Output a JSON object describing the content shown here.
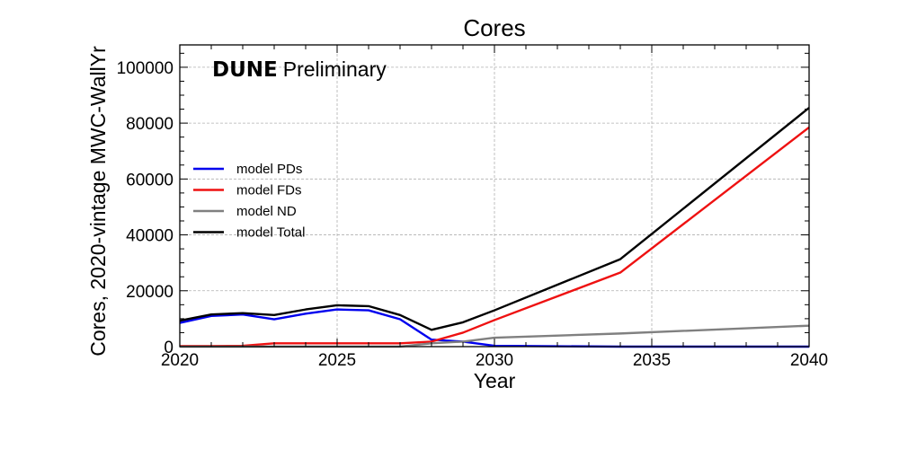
{
  "chart_data": {
    "type": "line",
    "title": "Cores",
    "xlabel": "Year",
    "ylabel": "Cores, 2020-vintage MWC-WallYr",
    "xlim": [
      2020,
      2040
    ],
    "ylim": [
      0,
      108000
    ],
    "xticks": [
      2020,
      2025,
      2030,
      2035,
      2040
    ],
    "yticks": [
      0,
      20000,
      40000,
      60000,
      80000,
      100000
    ],
    "grid": true,
    "legend_position": "center-left",
    "annotation": {
      "bold": "DUNE",
      "regular": "Preliminary"
    },
    "series": [
      {
        "name": "model PDs",
        "color": "#0000ee",
        "x": [
          2020,
          2021,
          2022,
          2023,
          2024,
          2025,
          2026,
          2027,
          2028,
          2029,
          2030,
          2034,
          2040
        ],
        "y": [
          8500,
          11000,
          11500,
          9800,
          11800,
          13300,
          13000,
          9800,
          2500,
          1800,
          300,
          0,
          0
        ]
      },
      {
        "name": "model FDs",
        "color": "#ee1111",
        "x": [
          2020,
          2021,
          2022,
          2023,
          2024,
          2025,
          2026,
          2027,
          2028,
          2029,
          2030,
          2034,
          2040
        ],
        "y": [
          200,
          200,
          300,
          1200,
          1200,
          1200,
          1200,
          1200,
          1800,
          5000,
          9500,
          26500,
          78500
        ]
      },
      {
        "name": "model ND",
        "color": "#808080",
        "x": [
          2020,
          2021,
          2022,
          2023,
          2024,
          2025,
          2026,
          2027,
          2028,
          2029,
          2030,
          2034,
          2040
        ],
        "y": [
          0,
          0,
          0,
          0,
          0,
          0,
          0,
          0,
          1200,
          1800,
          3200,
          4700,
          7500
        ]
      },
      {
        "name": "model Total",
        "color": "#000000",
        "x": [
          2020,
          2021,
          2022,
          2023,
          2024,
          2025,
          2026,
          2027,
          2028,
          2029,
          2030,
          2034,
          2040
        ],
        "y": [
          9300,
          11500,
          12000,
          11300,
          13300,
          14800,
          14500,
          11300,
          6000,
          8700,
          13000,
          31300,
          85500
        ]
      }
    ]
  }
}
